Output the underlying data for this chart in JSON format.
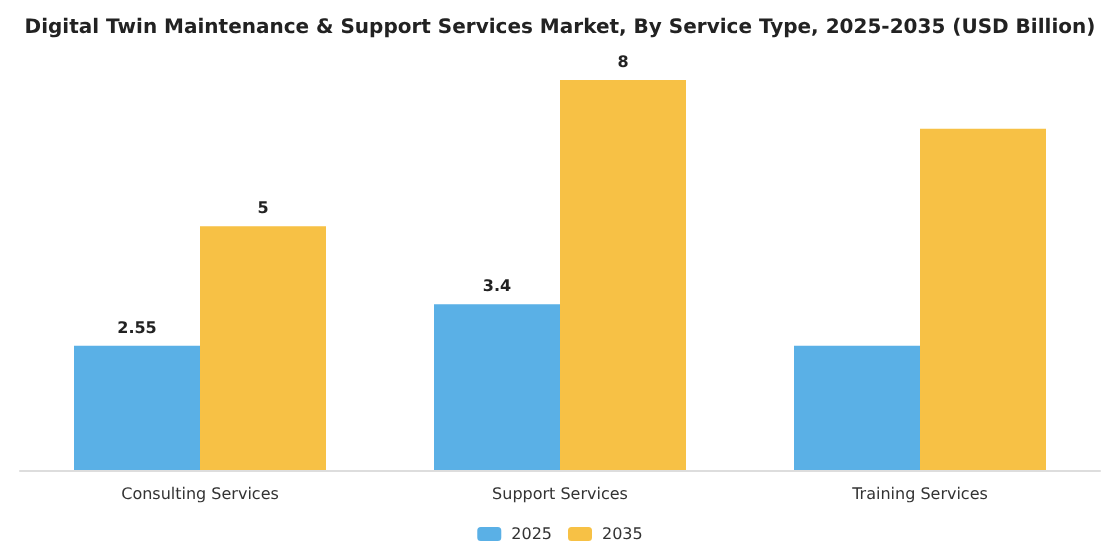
{
  "chart_data": {
    "type": "bar",
    "title": "Digital Twin Maintenance & Support Services Market, By Service Type, 2025-2035 (USD Billion)",
    "categories": [
      "Consulting Services",
      "Support Services",
      "Training Services"
    ],
    "series": [
      {
        "name": "2025",
        "color": "#5ab0e6",
        "values": [
          2.55,
          3.4,
          2.55
        ],
        "value_labels": [
          "2.55",
          "3.4",
          null
        ]
      },
      {
        "name": "2035",
        "color": "#f7c145",
        "values": [
          5,
          8,
          7
        ],
        "value_labels": [
          "5",
          "8",
          null
        ]
      }
    ],
    "legend": "bottom",
    "grid": false
  }
}
